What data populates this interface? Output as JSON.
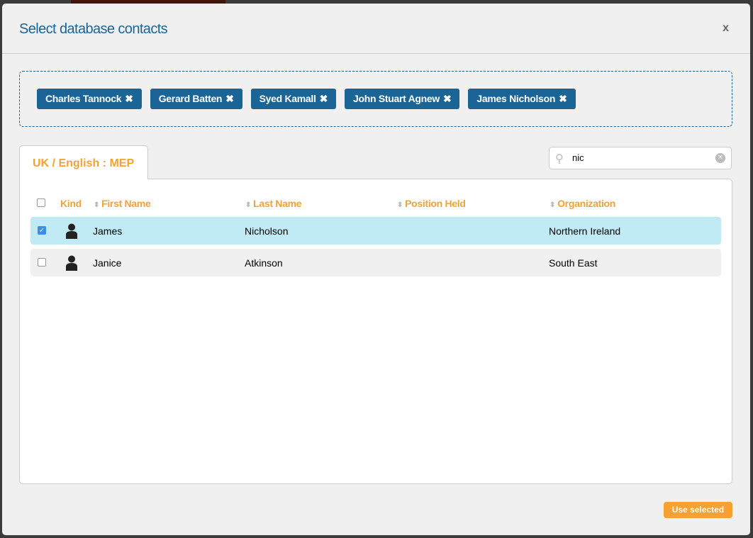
{
  "dialog": {
    "title": "Select database contacts",
    "close_label": "x"
  },
  "selected_tags": [
    {
      "label": "Charles Tannock"
    },
    {
      "label": "Gerard Batten"
    },
    {
      "label": "Syed Kamall"
    },
    {
      "label": "John Stuart Agnew"
    },
    {
      "label": "James Nicholson"
    }
  ],
  "tag_remove_icon": "✖",
  "tab": {
    "label": "UK / English : MEP"
  },
  "search": {
    "value": "nic",
    "icon": "search-icon"
  },
  "table": {
    "headers": {
      "kind": "Kind",
      "first_name": "First Name",
      "last_name": "Last Name",
      "position": "Position Held",
      "organization": "Organization"
    },
    "rows": [
      {
        "checked": true,
        "first_name": "James",
        "last_name": "Nicholson",
        "position": "",
        "organization": "Northern Ireland"
      },
      {
        "checked": false,
        "first_name": "Janice",
        "last_name": "Atkinson",
        "position": "",
        "organization": "South East"
      }
    ]
  },
  "footer": {
    "use_selected_label": "Use selected"
  },
  "colors": {
    "primary": "#1a6596",
    "accent": "#f7a133",
    "selected_row": "#c0eaf4"
  }
}
